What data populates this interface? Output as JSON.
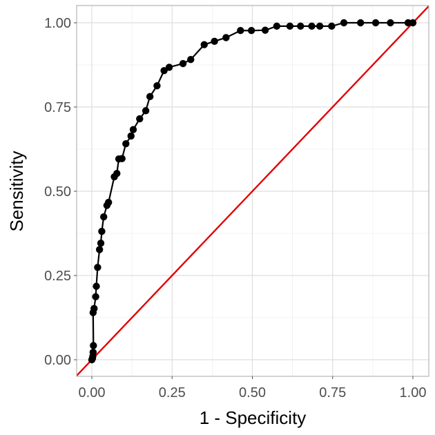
{
  "chart_data": {
    "type": "line",
    "title": "",
    "xlabel": "1 - Specificity",
    "ylabel": "Sensitivity",
    "xlim": [
      0.0,
      1.0
    ],
    "ylim": [
      0.0,
      1.0
    ],
    "grid": true,
    "x_ticks": [
      "0.00",
      "0.25",
      "0.50",
      "0.75",
      "1.00"
    ],
    "y_ticks": [
      "0.00",
      "0.25",
      "0.50",
      "0.75",
      "1.00"
    ],
    "x_tick_values": [
      0.0,
      0.25,
      0.5,
      0.75,
      1.0
    ],
    "y_tick_values": [
      0.0,
      0.25,
      0.5,
      0.75,
      1.0
    ],
    "series": [
      {
        "color": "#000000",
        "markers": true,
        "points": [
          [
            0.0,
            0.0
          ],
          [
            0.002,
            0.004
          ],
          [
            0.003,
            0.01
          ],
          [
            0.004,
            0.022
          ],
          [
            0.005,
            0.042
          ],
          [
            0.004,
            0.14
          ],
          [
            0.007,
            0.152
          ],
          [
            0.012,
            0.187
          ],
          [
            0.014,
            0.218
          ],
          [
            0.018,
            0.274
          ],
          [
            0.024,
            0.327
          ],
          [
            0.028,
            0.346
          ],
          [
            0.031,
            0.381
          ],
          [
            0.037,
            0.424
          ],
          [
            0.047,
            0.458
          ],
          [
            0.052,
            0.467
          ],
          [
            0.07,
            0.543
          ],
          [
            0.078,
            0.553
          ],
          [
            0.084,
            0.596
          ],
          [
            0.094,
            0.597
          ],
          [
            0.106,
            0.641
          ],
          [
            0.122,
            0.664
          ],
          [
            0.129,
            0.683
          ],
          [
            0.149,
            0.715
          ],
          [
            0.168,
            0.739
          ],
          [
            0.181,
            0.781
          ],
          [
            0.203,
            0.813
          ],
          [
            0.225,
            0.858
          ],
          [
            0.241,
            0.868
          ],
          [
            0.284,
            0.879
          ],
          [
            0.308,
            0.891
          ],
          [
            0.35,
            0.935
          ],
          [
            0.382,
            0.945
          ],
          [
            0.418,
            0.956
          ],
          [
            0.463,
            0.977
          ],
          [
            0.497,
            0.977
          ],
          [
            0.54,
            0.978
          ],
          [
            0.576,
            0.99
          ],
          [
            0.617,
            0.99
          ],
          [
            0.65,
            0.99
          ],
          [
            0.685,
            0.99
          ],
          [
            0.71,
            0.99
          ],
          [
            0.747,
            0.99
          ],
          [
            0.785,
            1.0
          ],
          [
            0.837,
            1.0
          ],
          [
            0.884,
            1.0
          ],
          [
            0.93,
            1.0
          ],
          [
            0.985,
            1.0
          ],
          [
            1.0,
            1.0
          ]
        ]
      },
      {
        "color": "#e00000",
        "markers": false,
        "points": [
          [
            -0.05,
            -0.05
          ],
          [
            1.05,
            1.05
          ]
        ]
      }
    ]
  }
}
